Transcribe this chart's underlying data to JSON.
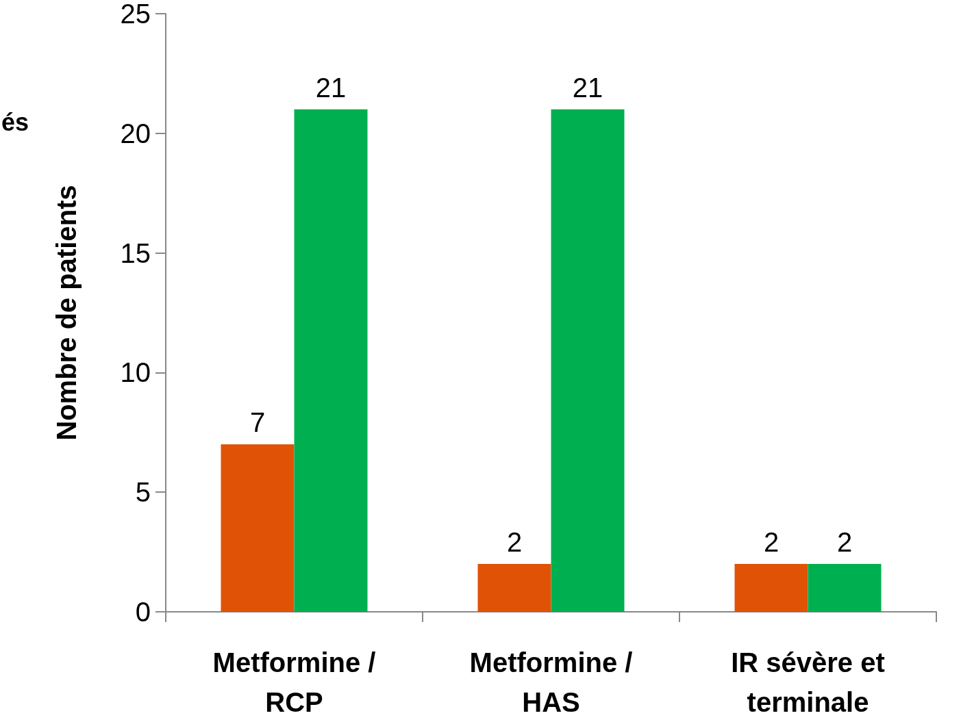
{
  "chart_data": {
    "type": "bar",
    "ylabel": "Nombre de patients",
    "categories": [
      "Metformine /\nRCP",
      "Metformine /\nHAS",
      "IR sévère et\nterminale"
    ],
    "series": [
      {
        "color": "#e05206",
        "values": [
          7,
          2,
          2
        ]
      },
      {
        "color": "#00b050",
        "values": [
          21,
          21,
          2
        ]
      }
    ],
    "ylim": [
      0,
      25
    ],
    "yticks": [
      0,
      5,
      10,
      15,
      20,
      25
    ],
    "grid": false,
    "data_labels": true,
    "annotations": [
      "és"
    ]
  }
}
